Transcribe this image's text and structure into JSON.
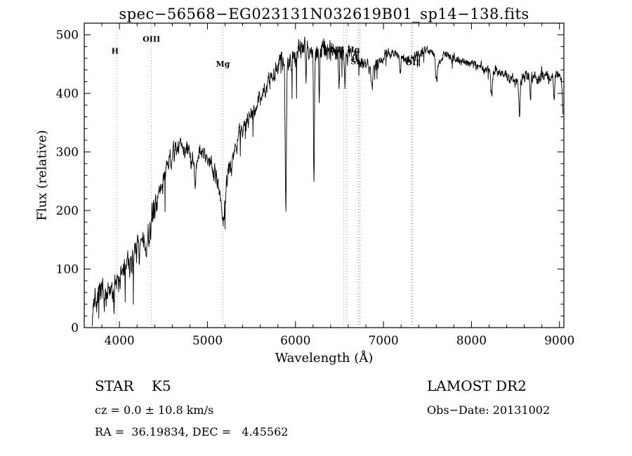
{
  "annotations": {
    "class_line": "STAR    K5",
    "survey": "LAMOST DR2",
    "cz_line": "cz = 0.0 ± 10.8 km/s",
    "obs_date": "Obs−Date: 20131002",
    "radec_line": "RA =  36.19834, DEC =   4.45562"
  },
  "chart_data": {
    "type": "line",
    "title": "spec−56568−EG023131N032619B01_sp14−138.fits",
    "xlabel": "Wavelength (Å)",
    "ylabel": "Flux (relative)",
    "xlim": [
      3600,
      9050
    ],
    "ylim": [
      0,
      520
    ],
    "xticks": [
      4000,
      5000,
      6000,
      7000,
      8000,
      9000
    ],
    "yticks": [
      0,
      100,
      200,
      300,
      400,
      500
    ],
    "x_minor_step": 200,
    "y_minor_step": 20,
    "grid": false,
    "legend": "none",
    "line_color": "#000000",
    "marker_line_color": "#999999",
    "line_markers": [
      {
        "label": "H",
        "lines": [
          3970
        ],
        "label_wl": 3950,
        "label_flux": 468
      },
      {
        "label": "OIII",
        "lines": [
          4363
        ],
        "label_wl": 4363,
        "label_flux": 488
      },
      {
        "label": "Mg",
        "lines": [
          5175
        ],
        "label_wl": 5175,
        "label_flux": 446
      },
      {
        "label": "NII Hα",
        "lines": [
          6548,
          6583
        ],
        "label_wl": 6566,
        "label_flux": 470
      },
      {
        "label": "SII",
        "lines": [
          6716,
          6731
        ],
        "label_wl": 6700,
        "label_flux": 450
      },
      {
        "label": "OII",
        "lines": [
          7320,
          7330
        ],
        "label_wl": 7330,
        "label_flux": 448
      }
    ],
    "spectrum": {
      "x_start": 3690,
      "x_end": 9040,
      "sample_step": 3,
      "continuum_anchors": [
        [
          3690,
          22
        ],
        [
          3705,
          40
        ],
        [
          3720,
          55
        ],
        [
          3740,
          35
        ],
        [
          3760,
          45
        ],
        [
          3780,
          60
        ],
        [
          3800,
          50
        ],
        [
          3820,
          62
        ],
        [
          3840,
          58
        ],
        [
          3860,
          48
        ],
        [
          3880,
          60
        ],
        [
          3900,
          55
        ],
        [
          3930,
          70
        ],
        [
          3960,
          88
        ],
        [
          3990,
          92
        ],
        [
          4020,
          86
        ],
        [
          4060,
          100
        ],
        [
          4100,
          112
        ],
        [
          4140,
          108
        ],
        [
          4180,
          128
        ],
        [
          4220,
          148
        ],
        [
          4260,
          152
        ],
        [
          4300,
          148
        ],
        [
          4340,
          168
        ],
        [
          4380,
          192
        ],
        [
          4420,
          218
        ],
        [
          4460,
          232
        ],
        [
          4500,
          252
        ],
        [
          4540,
          268
        ],
        [
          4580,
          288
        ],
        [
          4620,
          298
        ],
        [
          4660,
          308
        ],
        [
          4700,
          315
        ],
        [
          4740,
          308
        ],
        [
          4780,
          298
        ],
        [
          4820,
          292
        ],
        [
          4860,
          282
        ],
        [
          4900,
          294
        ],
        [
          4940,
          300
        ],
        [
          4980,
          296
        ],
        [
          5020,
          288
        ],
        [
          5060,
          278
        ],
        [
          5100,
          262
        ],
        [
          5140,
          232
        ],
        [
          5175,
          172
        ],
        [
          5210,
          232
        ],
        [
          5250,
          282
        ],
        [
          5300,
          305
        ],
        [
          5350,
          325
        ],
        [
          5400,
          340
        ],
        [
          5450,
          352
        ],
        [
          5500,
          362
        ],
        [
          5550,
          378
        ],
        [
          5600,
          392
        ],
        [
          5650,
          406
        ],
        [
          5700,
          420
        ],
        [
          5750,
          432
        ],
        [
          5800,
          442
        ],
        [
          5850,
          452
        ],
        [
          5900,
          456
        ],
        [
          5950,
          462
        ],
        [
          6000,
          470
        ],
        [
          6050,
          478
        ],
        [
          6100,
          487
        ],
        [
          6150,
          480
        ],
        [
          6200,
          470
        ],
        [
          6250,
          462
        ],
        [
          6300,
          477
        ],
        [
          6350,
          469
        ],
        [
          6400,
          474
        ],
        [
          6450,
          467
        ],
        [
          6500,
          472
        ],
        [
          6550,
          467
        ],
        [
          6600,
          470
        ],
        [
          6650,
          464
        ],
        [
          6700,
          461
        ],
        [
          6750,
          455
        ],
        [
          6800,
          450
        ],
        [
          6850,
          443
        ],
        [
          6900,
          446
        ],
        [
          6950,
          455
        ],
        [
          7000,
          462
        ],
        [
          7050,
          467
        ],
        [
          7100,
          470
        ],
        [
          7150,
          468
        ],
        [
          7200,
          464
        ],
        [
          7250,
          460
        ],
        [
          7300,
          458
        ],
        [
          7350,
          464
        ],
        [
          7400,
          469
        ],
        [
          7450,
          473
        ],
        [
          7500,
          476
        ],
        [
          7550,
          470
        ],
        [
          7600,
          455
        ],
        [
          7650,
          460
        ],
        [
          7700,
          466
        ],
        [
          7750,
          463
        ],
        [
          7800,
          460
        ],
        [
          7850,
          458
        ],
        [
          7900,
          456
        ],
        [
          7950,
          453
        ],
        [
          8000,
          450
        ],
        [
          8100,
          446
        ],
        [
          8200,
          441
        ],
        [
          8300,
          436
        ],
        [
          8400,
          431
        ],
        [
          8500,
          421
        ],
        [
          8600,
          429
        ],
        [
          8700,
          426
        ],
        [
          8800,
          429
        ],
        [
          8900,
          425
        ],
        [
          8980,
          430
        ],
        [
          9020,
          428
        ],
        [
          9040,
          370
        ]
      ],
      "absorption_lines": [
        {
          "wl": 3934,
          "depth": 35,
          "width": 7
        },
        {
          "wl": 4226,
          "depth": 45,
          "width": 6
        },
        {
          "wl": 4305,
          "depth": 35,
          "width": 8
        },
        {
          "wl": 4340,
          "depth": 30,
          "width": 6
        },
        {
          "wl": 4861,
          "depth": 35,
          "width": 7
        },
        {
          "wl": 5270,
          "depth": 30,
          "width": 7
        },
        {
          "wl": 5890,
          "depth": 250,
          "width": 7
        },
        {
          "wl": 6120,
          "depth": 60,
          "width": 5
        },
        {
          "wl": 6210,
          "depth": 215,
          "width": 5
        },
        {
          "wl": 6270,
          "depth": 80,
          "width": 5
        },
        {
          "wl": 6495,
          "depth": 70,
          "width": 5
        },
        {
          "wl": 6563,
          "depth": 45,
          "width": 6
        },
        {
          "wl": 6870,
          "depth": 30,
          "width": 9
        },
        {
          "wl": 7190,
          "depth": 35,
          "width": 7
        },
        {
          "wl": 7605,
          "depth": 30,
          "width": 10
        },
        {
          "wl": 8230,
          "depth": 45,
          "width": 7
        },
        {
          "wl": 8545,
          "depth": 60,
          "width": 8
        },
        {
          "wl": 8670,
          "depth": 35,
          "width": 6
        },
        {
          "wl": 8940,
          "depth": 35,
          "width": 6
        }
      ],
      "noise_anchors": [
        [
          3690,
          15
        ],
        [
          4000,
          15
        ],
        [
          4300,
          14
        ],
        [
          4600,
          12
        ],
        [
          4900,
          10
        ],
        [
          5175,
          12
        ],
        [
          5400,
          9
        ],
        [
          5700,
          9
        ],
        [
          6000,
          13
        ],
        [
          6300,
          13
        ],
        [
          6550,
          10
        ],
        [
          6800,
          7
        ],
        [
          7100,
          6
        ],
        [
          7500,
          5
        ],
        [
          7900,
          5
        ],
        [
          8300,
          6
        ],
        [
          8600,
          7
        ],
        [
          9040,
          8
        ]
      ]
    }
  }
}
